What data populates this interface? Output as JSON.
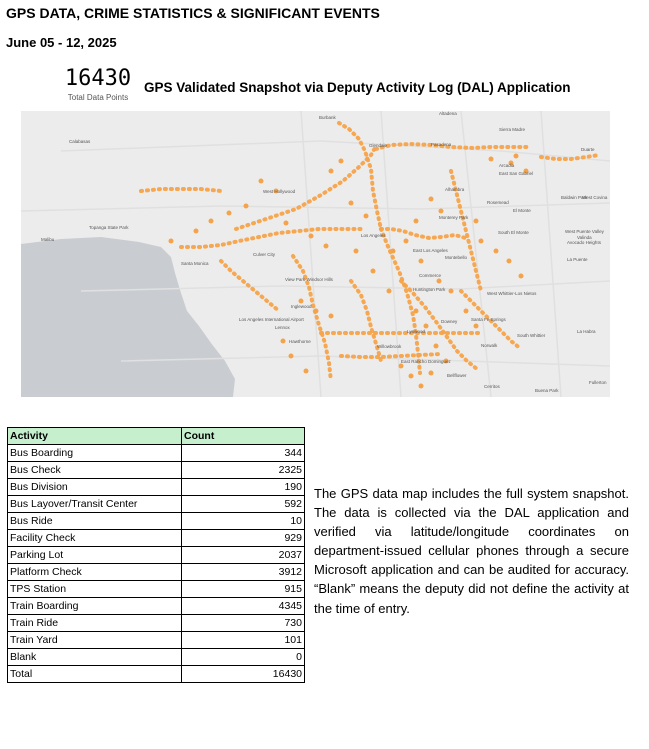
{
  "header": {
    "title": "GPS DATA, CRIME STATISTICS & SIGNIFICANT EVENTS",
    "date_range": "June 05 - 12, 2025"
  },
  "kpi": {
    "value": "16430",
    "label": "Total Data Points",
    "snapshot_title": "GPS Validated Snapshot via Deputy Activity Log (DAL) Application"
  },
  "map": {
    "labels": [
      "Burbank",
      "Altadena",
      "Sierra Madre",
      "Calabasas",
      "Glendale",
      "Pasadena",
      "Duarte",
      "Arcadia",
      "East San Gabriel",
      "Alhambra",
      "West Hollywood",
      "Rosemead",
      "El Monte",
      "Baldwin Park",
      "West Covina",
      "Monterey Park",
      "Los Angeles",
      "South El Monte",
      "West Puente Valley",
      "Avocado Heights",
      "Valinda",
      "Malibu",
      "Topanga State Park",
      "Culver City",
      "East Los Angeles",
      "Montebello",
      "La Puente",
      "Santa Monica",
      "Commerce",
      "View Park-Windsor Hills",
      "Huntington Park",
      "West Whittier-Los Nietos",
      "Inglewood",
      "Los Angeles International Airport",
      "Santa Fe Springs",
      "Downey",
      "Lennox",
      "Lynwood",
      "South Whittier",
      "Hawthorne",
      "Norwalk",
      "La Habra",
      "Willowbrook",
      "East Rancho Dominguez",
      "Bellflower",
      "Fullerton",
      "Cerritos",
      "Buena Park"
    ],
    "water_color": "#c9cdd1",
    "land_color": "#ececec",
    "marker_color": "#f5a34a"
  },
  "table": {
    "headers": [
      "Activity",
      "Count"
    ],
    "rows": [
      {
        "activity": "Bus Boarding",
        "count": "344"
      },
      {
        "activity": "Bus Check",
        "count": "2325"
      },
      {
        "activity": "Bus Division",
        "count": "190"
      },
      {
        "activity": "Bus Layover/Transit Center",
        "count": "592"
      },
      {
        "activity": "Bus Ride",
        "count": "10"
      },
      {
        "activity": "Facility Check",
        "count": "929"
      },
      {
        "activity": "Parking Lot",
        "count": "2037"
      },
      {
        "activity": "Platform Check",
        "count": "3912"
      },
      {
        "activity": "TPS Station",
        "count": "915"
      },
      {
        "activity": "Train Boarding",
        "count": "4345"
      },
      {
        "activity": "Train Ride",
        "count": "730"
      },
      {
        "activity": "Train Yard",
        "count": "101"
      },
      {
        "activity": "Blank",
        "count": "0"
      },
      {
        "activity": "Total",
        "count": "16430"
      }
    ],
    "header_color": "#c6efce"
  },
  "note": "The GPS data map includes the full system snapshot. The data is collected via the DAL application and verified via latitude/longitude coordinates on department-issued cellular phones through a secure Microsoft application and can be audited for accuracy. “Blank” means the deputy did not define the activity at the time of entry."
}
